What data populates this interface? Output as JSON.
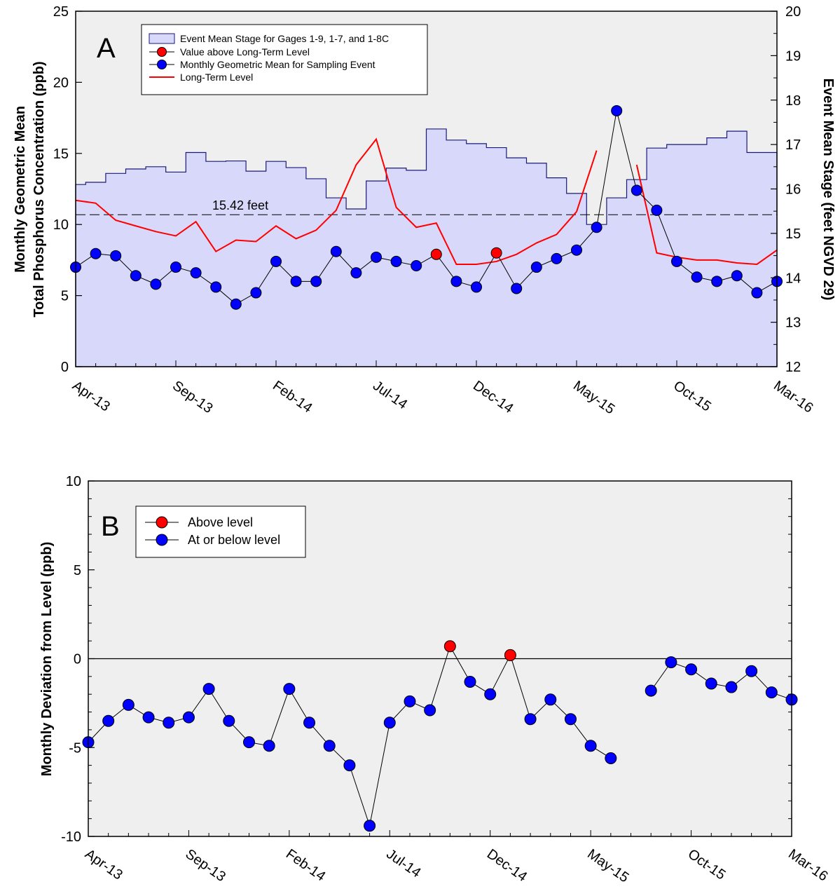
{
  "chart_data": [
    {
      "panel": "A",
      "type": "line",
      "ylabel_line1": "Monthly Geometric Mean",
      "ylabel_line2": "Total Phosphorus Concentration (ppb)",
      "y2label": "Event Mean Stage (feet NGVD 29)",
      "ylim": [
        0,
        25
      ],
      "yticks": [
        0,
        5,
        10,
        15,
        20,
        25
      ],
      "y2lim": [
        12,
        20
      ],
      "y2ticks": [
        12,
        13,
        14,
        15,
        16,
        17,
        18,
        19,
        20
      ],
      "xlim": [
        0,
        35
      ],
      "x_tick_positions": [
        0,
        5,
        10,
        15,
        20,
        25,
        30,
        35
      ],
      "x_tick_labels": [
        "Apr-13",
        "Sep-13",
        "Feb-14",
        "Jul-14",
        "Dec-14",
        "May-15",
        "Oct-15",
        "Mar-16"
      ],
      "reference_line": {
        "y2": 15.42,
        "label": "15.42 feet"
      },
      "grid": false,
      "legend_position": "top-left",
      "colors": {
        "stage_fill": "#d8d8fa",
        "stage_edge": "#1a1a7a",
        "mean": "#0000ff",
        "above": "#ff0000",
        "level": "#ff0000",
        "plot_bg": "#efefef"
      },
      "series": [
        {
          "name": "Event Mean Stage for Gages  1-9, 1-7, and 1-8C",
          "kind": "step-area",
          "axis": "right",
          "x_edges": [
            0,
            0.5,
            1.5,
            2.5,
            3.5,
            4.5,
            5.5,
            6.5,
            7.5,
            8.5,
            9.5,
            10.5,
            11.5,
            12.5,
            13.5,
            14.5,
            15.5,
            16.5,
            17.5,
            18.5,
            19.5,
            20.5,
            21.5,
            22.5,
            23.5,
            24.5,
            25.5,
            26.5,
            27.5,
            28.5,
            29.5,
            30.5,
            31.5,
            32.5,
            33.5,
            34.5,
            35
          ],
          "values": [
            16.1,
            16.15,
            16.35,
            16.45,
            16.5,
            16.38,
            16.82,
            16.62,
            16.63,
            16.4,
            16.62,
            16.48,
            16.23,
            15.8,
            15.55,
            16.18,
            16.47,
            16.42,
            17.35,
            17.1,
            17.02,
            16.93,
            16.7,
            16.58,
            16.25,
            15.9,
            15.2,
            15.8,
            16.21,
            16.92,
            17.0,
            17.0,
            17.15,
            17.3,
            16.82,
            16.82
          ]
        },
        {
          "name": "Long-Term Level",
          "kind": "line",
          "axis": "left",
          "segments": [
            {
              "x": [
                0,
                1,
                2,
                3,
                4,
                5,
                6,
                7,
                8,
                9,
                10,
                11,
                12,
                13,
                14,
                15,
                16,
                17,
                18,
                19,
                20,
                21,
                22,
                23,
                24,
                25
              ],
              "y": [
                11.7,
                11.5,
                10.3,
                9.9,
                9.5,
                9.2,
                10.2,
                8.1,
                8.9,
                8.8,
                9.9,
                9.0,
                9.6,
                11.0,
                14.2,
                16.0,
                11.2,
                9.8,
                10.1,
                7.2,
                7.2,
                7.4,
                7.9,
                8.7,
                9.3,
                10.9
              ]
            },
            {
              "x": [
                25,
                26
              ],
              "y": [
                10.9,
                15.2
              ]
            },
            {
              "x": [
                28,
                29,
                30,
                31,
                32,
                33,
                34,
                35
              ],
              "y": [
                14.2,
                8.0,
                7.7,
                7.5,
                7.5,
                7.3,
                7.2,
                8.2
              ]
            }
          ],
          "level_x": [
            0,
            1,
            2,
            3,
            4,
            5,
            6,
            7,
            8,
            9,
            10,
            11,
            12,
            13,
            14,
            15,
            16,
            17,
            18,
            19,
            20,
            21,
            22,
            23,
            24,
            25,
            26,
            28,
            29,
            30,
            31,
            32,
            33,
            34,
            35
          ],
          "level_y": [
            11.7,
            11.5,
            10.3,
            9.9,
            9.5,
            9.2,
            10.2,
            8.1,
            8.9,
            8.8,
            9.9,
            9.0,
            9.6,
            11.0,
            14.2,
            16.0,
            11.2,
            9.8,
            10.1,
            7.2,
            7.2,
            7.4,
            7.9,
            8.7,
            9.3,
            10.9,
            15.2,
            14.2,
            8.0,
            7.7,
            7.5,
            7.5,
            7.3,
            7.2,
            8.2
          ]
        },
        {
          "name": "Monthly Geometric Mean for Sampling Event",
          "kind": "line-markers",
          "axis": "left",
          "x": [
            0,
            1,
            2,
            3,
            4,
            5,
            6,
            7,
            8,
            9,
            10,
            11,
            12,
            13,
            14,
            15,
            16,
            17,
            18,
            19,
            20,
            21,
            22,
            23,
            24,
            25,
            26,
            27,
            28,
            29,
            30,
            31,
            32,
            33,
            34,
            35
          ],
          "y": [
            7.0,
            7.95,
            7.8,
            6.4,
            5.8,
            7.0,
            6.6,
            5.6,
            4.4,
            5.2,
            7.4,
            6.0,
            6.0,
            8.1,
            6.6,
            7.7,
            7.4,
            7.1,
            7.9,
            6.0,
            5.6,
            8.0,
            5.5,
            7.0,
            7.6,
            8.2,
            9.8,
            18.0,
            12.4,
            11.0,
            7.4,
            6.3,
            6.0,
            6.4,
            5.2,
            6.0
          ],
          "above_level_x": [
            18,
            21
          ]
        },
        {
          "name": "Value above Long-Term Level",
          "kind": "markers",
          "axis": "left",
          "x": [
            18,
            21
          ],
          "y": [
            7.9,
            8.0
          ]
        }
      ]
    },
    {
      "panel": "B",
      "type": "line",
      "ylabel": "Monthly Deviation from Level (ppb)",
      "ylim": [
        -10,
        10
      ],
      "yticks": [
        -10,
        -5,
        0,
        5,
        10
      ],
      "xlim": [
        0,
        35
      ],
      "x_tick_positions": [
        0,
        5,
        10,
        15,
        20,
        25,
        30,
        35
      ],
      "x_tick_labels": [
        "Apr-13",
        "Sep-13",
        "Feb-14",
        "Jul-14",
        "Dec-14",
        "May-15",
        "Oct-15",
        "Mar-16"
      ],
      "reference_line": {
        "y": 0
      },
      "grid": false,
      "legend_position": "top-left",
      "colors": {
        "above": "#ff0000",
        "below": "#0000ff",
        "plot_bg": "#efefef"
      },
      "series": [
        {
          "name": "Above level",
          "kind": "markers",
          "x": [
            18,
            21
          ],
          "y": [
            0.7,
            0.2
          ]
        },
        {
          "name": "At or below level",
          "kind": "line-markers",
          "segments": [
            {
              "x": [
                0,
                1,
                2,
                3,
                4,
                5,
                6,
                7,
                8,
                9,
                10,
                11,
                12,
                13,
                14,
                15,
                16,
                17,
                18,
                19,
                20,
                21,
                22,
                23,
                24,
                25,
                26
              ],
              "y": [
                -4.7,
                -3.5,
                -2.6,
                -3.3,
                -3.6,
                -3.3,
                -1.7,
                -3.5,
                -4.7,
                -4.9,
                -1.7,
                -3.6,
                -4.9,
                -6.0,
                -9.4,
                -3.6,
                -2.4,
                -2.9,
                0.7,
                -1.3,
                -2.0,
                0.2,
                -3.4,
                -2.3,
                -3.4,
                -4.9,
                -5.6
              ]
            },
            {
              "x": [
                28,
                29,
                30,
                31,
                32,
                33,
                34,
                35
              ],
              "y": [
                -1.8,
                -0.2,
                -0.6,
                -1.4,
                -1.6,
                -0.7,
                -1.9,
                -2.3
              ]
            }
          ],
          "above_level_x": [
            18,
            21
          ]
        }
      ]
    }
  ]
}
